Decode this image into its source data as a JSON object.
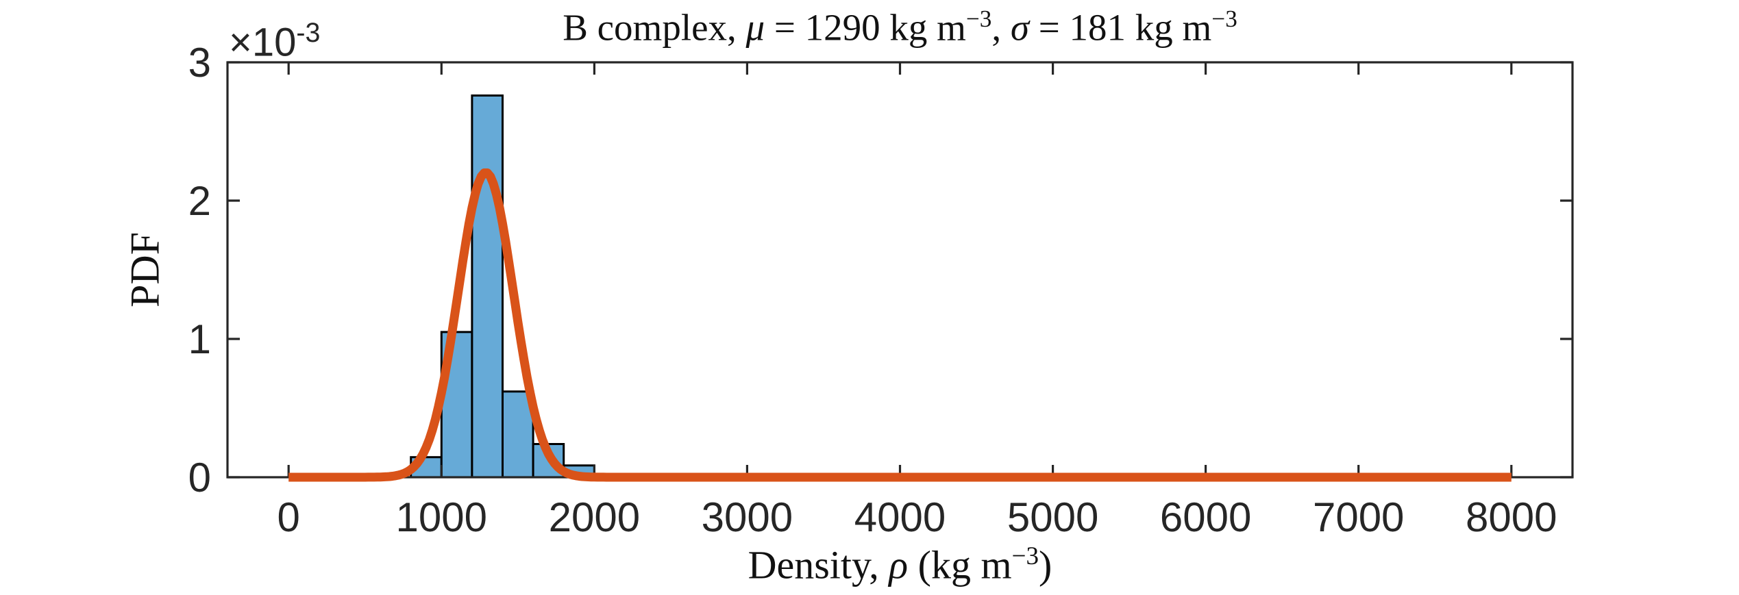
{
  "figure": {
    "background": "#FFFFFF"
  },
  "chart_data": {
    "type": "histogram_with_fit",
    "title": "B complex, μ = 1290 kg m⁻³, σ = 181 kg m⁻³",
    "title_runs": [
      {
        "t": "B complex, "
      },
      {
        "t": "μ",
        "i": true
      },
      {
        "t": " = 1290 kg m"
      },
      {
        "t": "−3",
        "sup": true
      },
      {
        "t": ", "
      },
      {
        "t": "σ",
        "i": true
      },
      {
        "t": " = 181 kg m"
      },
      {
        "t": "−3",
        "sup": true
      }
    ],
    "xlabel": "Density, ρ (kg m⁻³)",
    "xlabel_runs": [
      {
        "t": "Density, "
      },
      {
        "t": "ρ",
        "i": true
      },
      {
        "t": " (kg m"
      },
      {
        "t": "−3",
        "sup": true
      },
      {
        "t": ")"
      }
    ],
    "ylabel": "PDF",
    "y_axis_exponent": "×10⁻³",
    "y_exponent_runs": [
      {
        "t": "×10"
      },
      {
        "t": "-3",
        "sup": true
      }
    ],
    "x_ticks": [
      0,
      1000,
      2000,
      3000,
      4000,
      5000,
      6000,
      7000,
      8000
    ],
    "y_ticks_e3": [
      0,
      1,
      2,
      3
    ],
    "xlim": [
      -400,
      8400
    ],
    "ylim_e3": [
      0,
      3
    ],
    "grid": false,
    "legend": null,
    "histogram": {
      "bin_edges": [
        800,
        1000,
        1200,
        1400,
        1600,
        1800,
        2000
      ],
      "pdf_heights_e3": [
        0.145,
        1.05,
        2.76,
        0.62,
        0.24,
        0.085
      ]
    },
    "fit_curve": {
      "distribution": "normal",
      "mu": 1290,
      "sigma": 181,
      "x_start": 0,
      "x_end": 8000,
      "peak_pdf_e3": 2.2
    },
    "colors": {
      "bar_fill": "#66AAD7",
      "bar_edge": "#000000",
      "curve": "#D95319",
      "axis": "#262626",
      "tick_label": "#262626",
      "label_text": "#111111"
    }
  }
}
